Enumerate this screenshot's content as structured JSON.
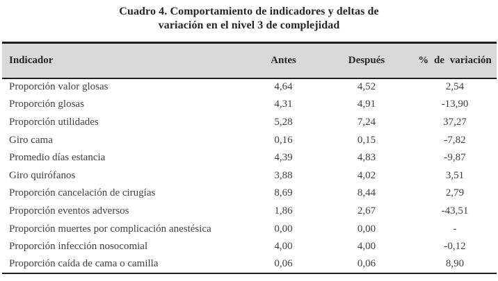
{
  "title": {
    "line1": "Cuadro 4. Comportamiento de indicadores y deltas de",
    "line2": "variación en el nivel 3 de complejidad"
  },
  "table": {
    "columns": [
      "Indicador",
      "Antes",
      "Después",
      "% de variación"
    ],
    "rows": [
      {
        "indicador": "Proporción valor glosas",
        "antes": "4,64",
        "despues": "4,52",
        "variacion": "2,54"
      },
      {
        "indicador": "Proporción glosas",
        "antes": "4,31",
        "despues": "4,91",
        "variacion": "-13,90"
      },
      {
        "indicador": "Proporción utilidades",
        "antes": "5,28",
        "despues": "7,24",
        "variacion": "37,27"
      },
      {
        "indicador": "Giro cama",
        "antes": "0,16",
        "despues": "0,15",
        "variacion": "-7,82"
      },
      {
        "indicador": "Promedio días estancia",
        "antes": "4,39",
        "despues": "4,83",
        "variacion": "-9,87"
      },
      {
        "indicador": "Giro quirófanos",
        "antes": "3,88",
        "despues": "4,02",
        "variacion": "3,51"
      },
      {
        "indicador": "Proporción cancelación de cirugías",
        "antes": "8,69",
        "despues": "8,44",
        "variacion": "2,79"
      },
      {
        "indicador": "Proporción eventos adversos",
        "antes": "1,86",
        "despues": "2,67",
        "variacion": "-43,51"
      },
      {
        "indicador": "Proporción muertes por complicación anestésica",
        "antes": "0,00",
        "despues": "0,00",
        "variacion": "-"
      },
      {
        "indicador": "Proporción infección nosocomial",
        "antes": "4,00",
        "despues": "4,00",
        "variacion": "-0,12"
      },
      {
        "indicador": "Proporción caída de cama o camilla",
        "antes": "0,06",
        "despues": "0,06",
        "variacion": "8,90"
      }
    ]
  },
  "colors": {
    "header_bg": "#d9d9d9",
    "border": "#1f1f1f",
    "body_text": "#3f3f3f",
    "title_text": "#262626"
  }
}
